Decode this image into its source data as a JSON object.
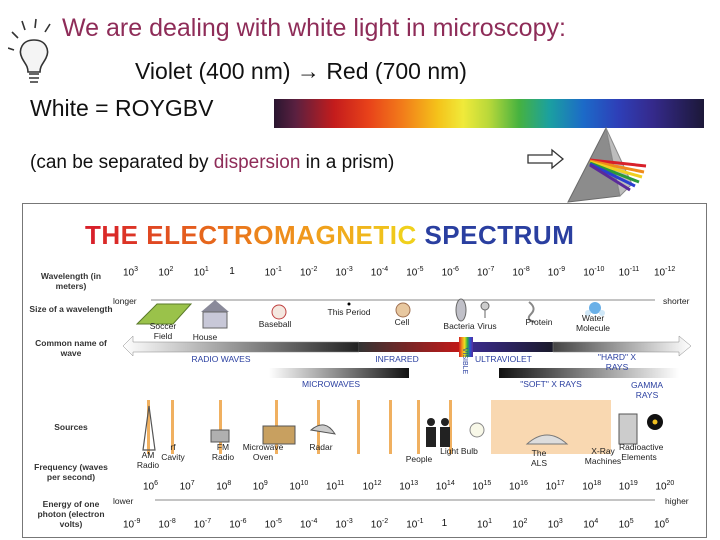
{
  "slide": {
    "title": "We are dealing with white light in microscopy:",
    "violet_red": "Violet (400 nm) → Red (700 nm)",
    "white": "White = ROYGBV",
    "dispersion_prefix": "(can be separated by ",
    "dispersion_word": "dispersion",
    "dispersion_suffix": " in a prism)"
  },
  "spectrum_figure": {
    "title_part1": "THE ELECTROMAGNETIC",
    "title_part2": "SPECTRUM",
    "row_labels": {
      "wavelength": "Wavelength (in meters)",
      "size": "Size of a wavelength",
      "common_name": "Common name of wave",
      "sources": "Sources",
      "frequency": "Frequency (waves per second)",
      "energy": "Energy of one photon (electron volts)"
    },
    "wavelength_ticks": [
      "10^3",
      "10^2",
      "10^1",
      "1",
      "10^-1",
      "10^-2",
      "10^-3",
      "10^-4",
      "10^-5",
      "10^-6",
      "10^-7",
      "10^-8",
      "10^-9",
      "10^-10",
      "10^-11",
      "10^-12"
    ],
    "longer": "longer",
    "shorter": "shorter",
    "size_objects": [
      "Soccer Field",
      "House",
      "Baseball",
      "This Period",
      "Cell",
      "Bacteria",
      "Virus",
      "Protein",
      "Water Molecule"
    ],
    "wave_names": {
      "radio": "RADIO WAVES",
      "infrared": "INFRARED",
      "visible": "VISIBLE",
      "ultraviolet": "ULTRAVIOLET",
      "hard_xrays": "\"HARD\" X RAYS",
      "microwaves": "MICROWAVES",
      "soft_xrays": "\"SOFT\" X RAYS",
      "gamma": "GAMMA RAYS"
    },
    "sources": [
      "FM Radio",
      "Microwave Oven",
      "Radar",
      "People",
      "Light Bulb",
      "The ALS",
      "X-Ray Machines",
      "Radioactive Elements"
    ],
    "source_am": "AM Radio",
    "source_rf": "rf Cavity",
    "frequency_ticks": [
      "10^6",
      "10^7",
      "10^8",
      "10^9",
      "10^10",
      "10^11",
      "10^12",
      "10^13",
      "10^14",
      "10^15",
      "10^16",
      "10^17",
      "10^18",
      "10^19",
      "10^20"
    ],
    "lower": "lower",
    "higher": "higher",
    "energy_ticks": [
      "10^-9",
      "10^-8",
      "10^-7",
      "10^-6",
      "10^-5",
      "10^-4",
      "10^-3",
      "10^-2",
      "10^-1",
      "1",
      "10^1",
      "10^2",
      "10^3",
      "10^4",
      "10^5",
      "10^6"
    ]
  },
  "colors": {
    "title": "#8e2c58",
    "em_red": "#d8202a",
    "em_orange": "#f08a1c",
    "em_blue": "#2a3fa0"
  }
}
